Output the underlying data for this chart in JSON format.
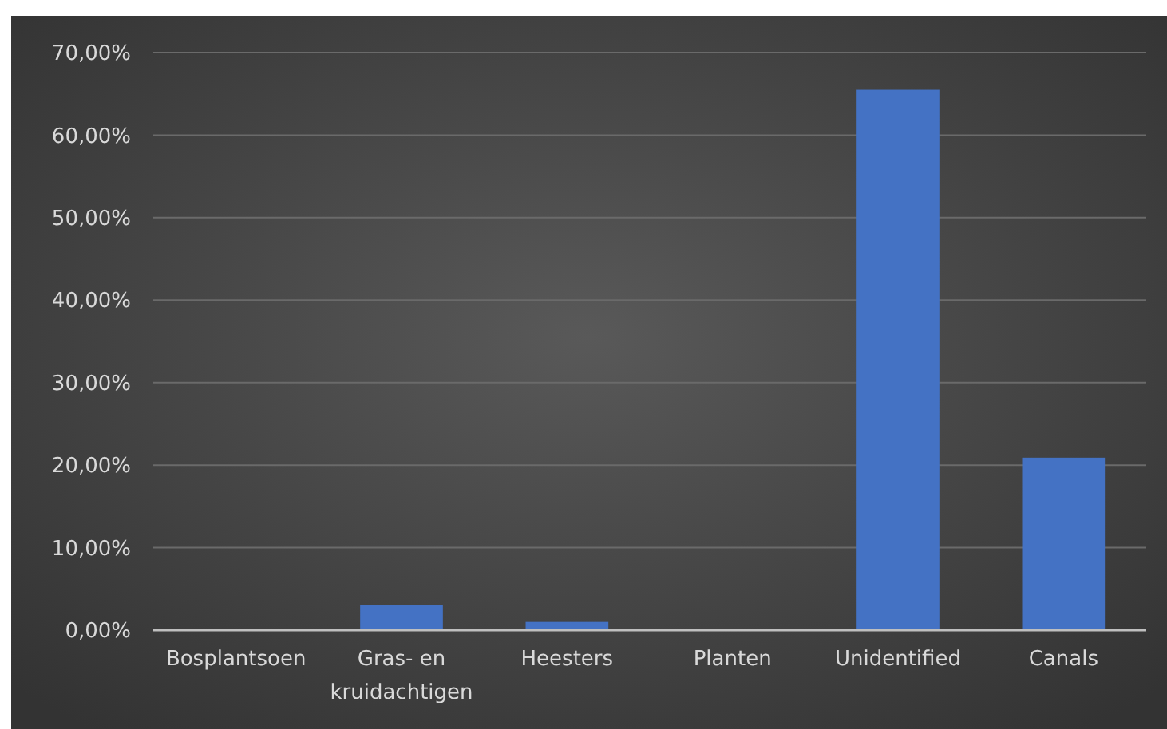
{
  "chart_data": {
    "type": "bar",
    "categories": [
      "Bosplantsoen",
      "Gras- en kruidachtigen",
      "Heesters",
      "Planten",
      "Unidentified",
      "Canals"
    ],
    "values": [
      0.1,
      3.0,
      1.0,
      0.1,
      65.5,
      20.9
    ],
    "color": "#4472c4",
    "ylim": [
      0,
      70
    ],
    "yticks": [
      {
        "value": 0,
        "label": "0,00%"
      },
      {
        "value": 10,
        "label": "10,00%"
      },
      {
        "value": 20,
        "label": "20,00%"
      },
      {
        "value": 30,
        "label": "30,00%"
      },
      {
        "value": 40,
        "label": "40,00%"
      },
      {
        "value": 50,
        "label": "50,00%"
      },
      {
        "value": 60,
        "label": "60,00%"
      },
      {
        "value": 70,
        "label": "70,00%"
      }
    ],
    "grid": "y"
  }
}
